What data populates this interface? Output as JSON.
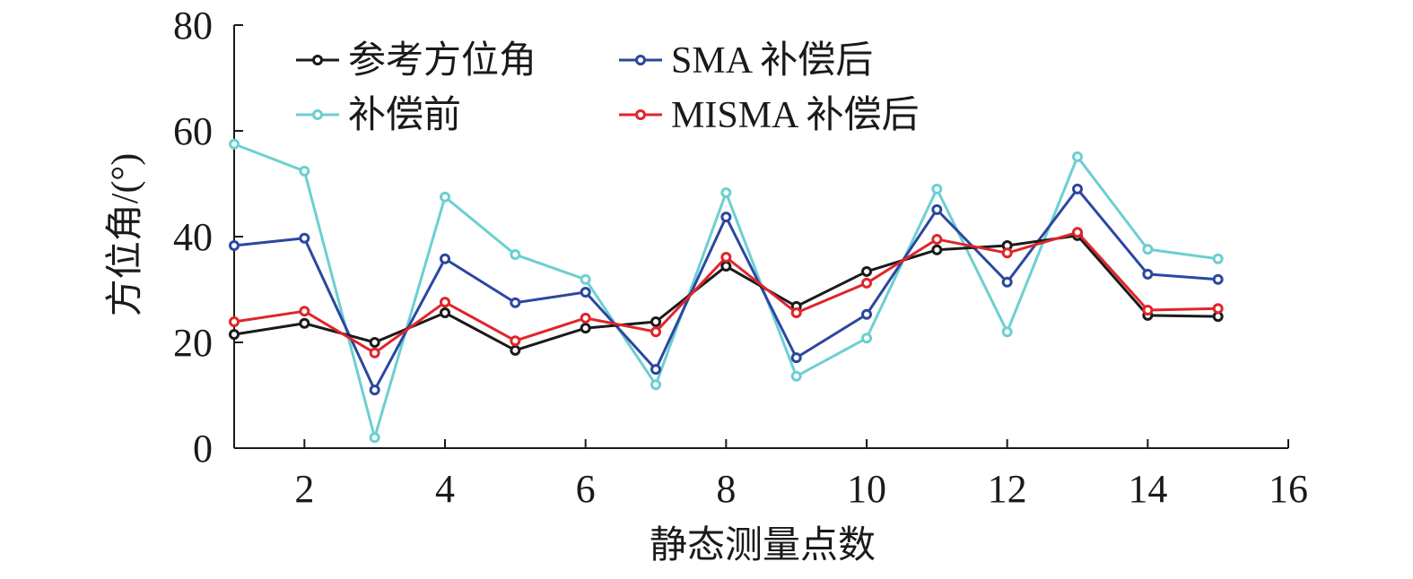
{
  "chart_data": {
    "type": "line",
    "title": "",
    "xlabel": "静态测量点数",
    "ylabel": "方位角/(°)",
    "xlim": [
      1,
      16
    ],
    "ylim": [
      0,
      80
    ],
    "xticks": [
      2,
      4,
      6,
      8,
      10,
      12,
      14,
      16
    ],
    "yticks": [
      0,
      20,
      40,
      60,
      80
    ],
    "grid": false,
    "legend_position": "top-left",
    "x": [
      1,
      2,
      3,
      4,
      5,
      6,
      7,
      8,
      9,
      10,
      11,
      12,
      13,
      14,
      15
    ],
    "series": [
      {
        "name": "参考方位角",
        "color": "#1a1a1a",
        "values": [
          21.5,
          23.6,
          20.0,
          25.6,
          18.5,
          22.7,
          23.9,
          34.4,
          26.8,
          33.4,
          37.5,
          38.3,
          40.2,
          25.1,
          24.9
        ]
      },
      {
        "name": "SMA 补偿后",
        "color": "#2b47a0",
        "values": [
          38.3,
          39.7,
          11.0,
          35.8,
          27.5,
          29.5,
          14.9,
          43.7,
          17.1,
          25.3,
          45.1,
          31.4,
          49.0,
          32.9,
          31.9
        ]
      },
      {
        "name": "补偿前",
        "color": "#6ccfd0",
        "values": [
          57.5,
          52.4,
          2.0,
          47.5,
          36.6,
          31.9,
          12.0,
          48.3,
          13.6,
          20.8,
          49.0,
          22.0,
          55.1,
          37.6,
          35.8
        ]
      },
      {
        "name": "MISMA 补偿后",
        "color": "#e0252a",
        "values": [
          23.9,
          25.9,
          18.0,
          27.6,
          20.3,
          24.6,
          22.0,
          36.1,
          25.6,
          31.2,
          39.5,
          36.9,
          40.8,
          26.1,
          26.4
        ]
      }
    ]
  }
}
